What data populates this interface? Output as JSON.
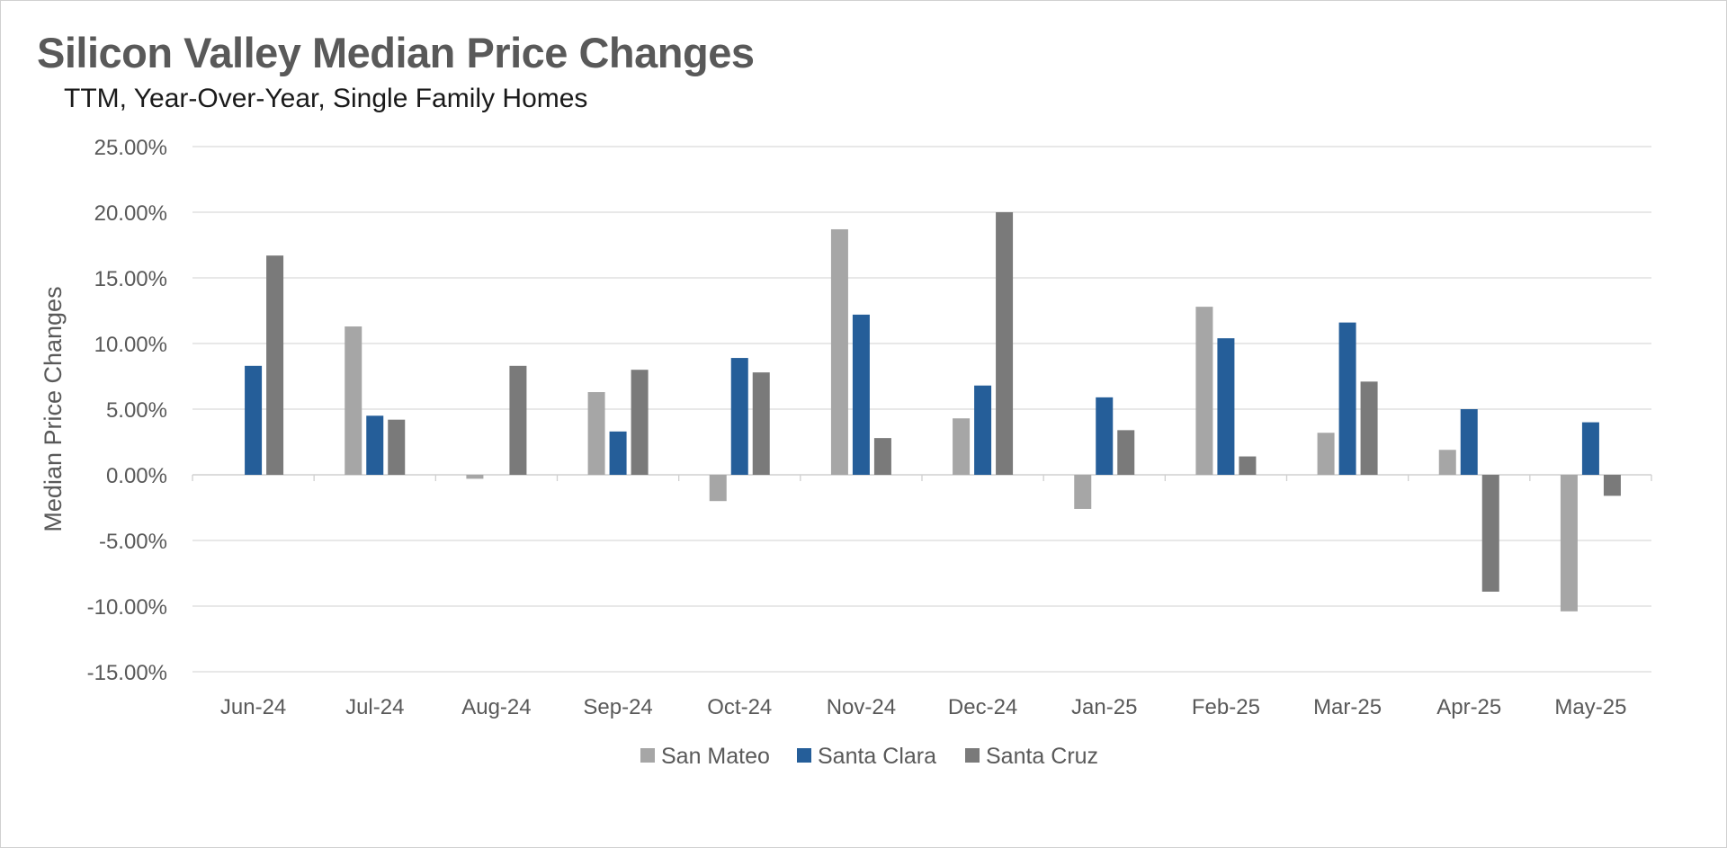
{
  "chart_data": {
    "type": "bar",
    "title": "Silicon Valley Median Price Changes",
    "subtitle": "TTM, Year-Over-Year, Single Family Homes",
    "xlabel": "",
    "ylabel": "Median Price Changes",
    "ylim": [
      -15,
      25
    ],
    "yticks": [
      25,
      20,
      15,
      10,
      5,
      0,
      -5,
      -10,
      -15
    ],
    "ytick_labels": [
      "25.00%",
      "20.00%",
      "15.00%",
      "10.00%",
      "5.00%",
      "0.00%",
      "-5.00%",
      "-10.00%",
      "-15.00%"
    ],
    "grid": true,
    "legend_position": "bottom",
    "categories": [
      "Jun-24",
      "Jul-24",
      "Aug-24",
      "Sep-24",
      "Oct-24",
      "Nov-24",
      "Dec-24",
      "Jan-25",
      "Feb-25",
      "Mar-25",
      "Apr-25",
      "May-25"
    ],
    "series": [
      {
        "name": "San Mateo",
        "color": "#a6a6a6",
        "values": [
          0,
          11.3,
          -0.3,
          6.3,
          -2.0,
          18.7,
          4.3,
          -2.6,
          12.8,
          3.2,
          1.9,
          -10.4
        ]
      },
      {
        "name": "Santa Clara",
        "color": "#255e99",
        "values": [
          8.3,
          4.5,
          0,
          3.3,
          8.9,
          12.2,
          6.8,
          5.9,
          10.4,
          11.6,
          5.0,
          4.0
        ]
      },
      {
        "name": "Santa Cruz",
        "color": "#7a7a7a",
        "values": [
          16.7,
          4.2,
          8.3,
          8.0,
          7.8,
          2.8,
          20.0,
          3.4,
          1.4,
          7.1,
          -8.9,
          -1.6
        ]
      }
    ]
  }
}
